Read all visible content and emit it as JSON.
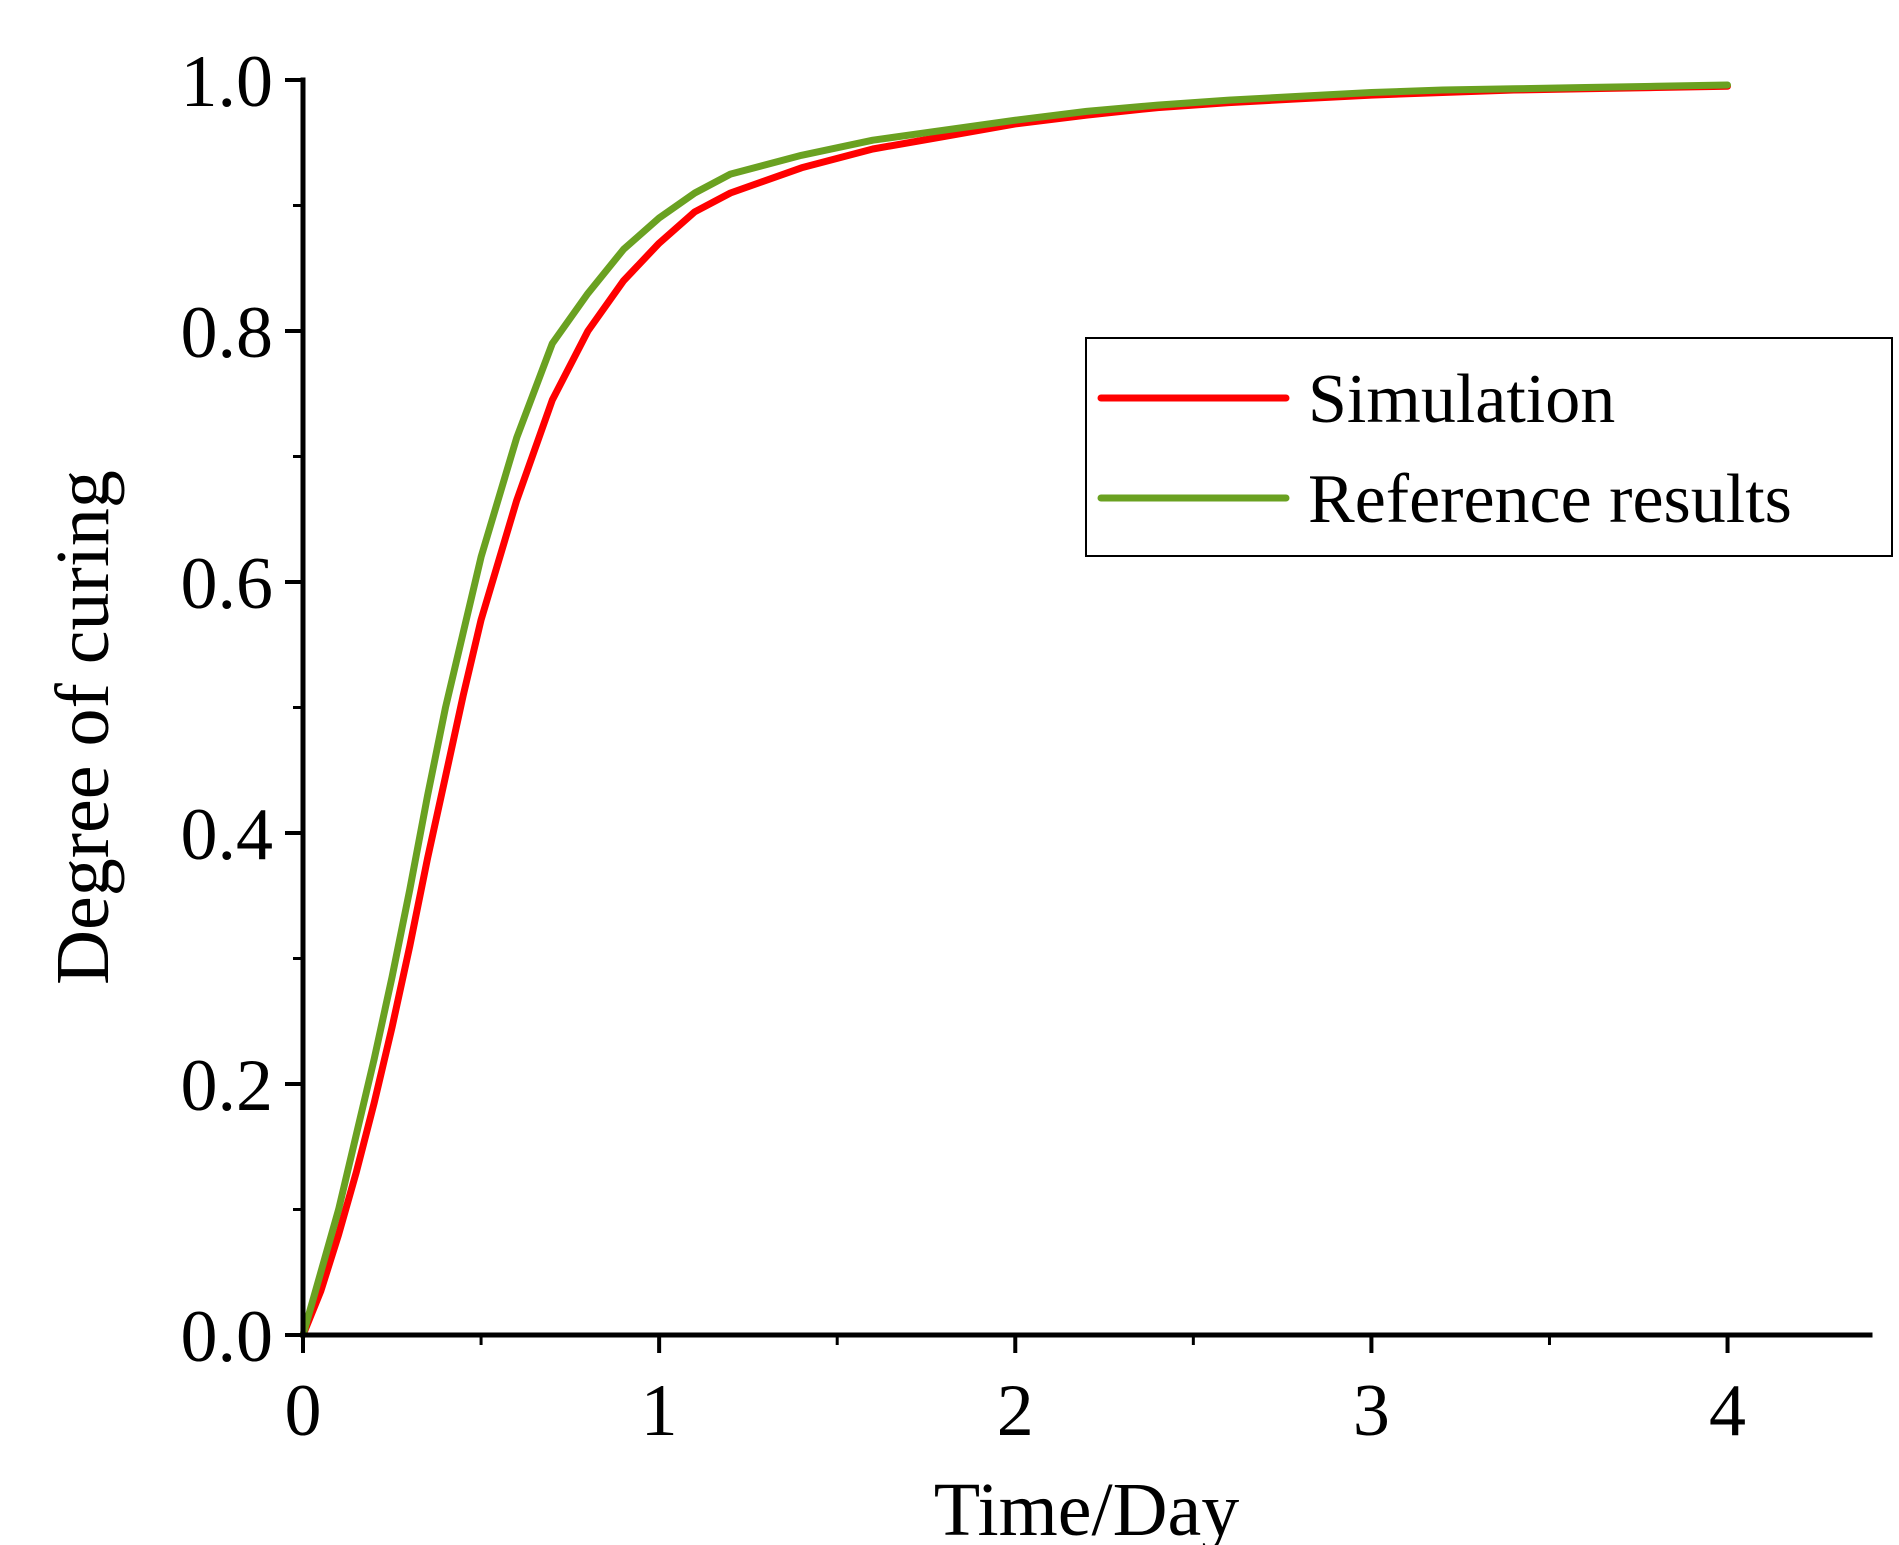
{
  "chart_data": {
    "type": "line",
    "title": "",
    "xlabel": "Time/Day",
    "ylabel": "Degree of curing",
    "xlim": [
      0,
      4.4
    ],
    "ylim": [
      0,
      1.0
    ],
    "xticks": [
      0,
      1,
      2,
      3,
      4
    ],
    "xtick_labels": [
      "0",
      "1",
      "2",
      "3",
      "4"
    ],
    "yticks": [
      0,
      0.2,
      0.4,
      0.6,
      0.8,
      1.0
    ],
    "ytick_labels": [
      "0.0",
      "0.2",
      "0.4",
      "0.6",
      "0.8",
      "1.0"
    ],
    "grid": false,
    "legend_position": "right",
    "series": [
      {
        "name": "Simulation",
        "color": "#ff0000",
        "x": [
          0,
          0.05,
          0.1,
          0.15,
          0.2,
          0.25,
          0.3,
          0.35,
          0.4,
          0.45,
          0.5,
          0.6,
          0.7,
          0.8,
          0.9,
          1.0,
          1.1,
          1.2,
          1.4,
          1.6,
          1.8,
          2.0,
          2.2,
          2.4,
          2.6,
          2.8,
          3.0,
          3.2,
          3.4,
          3.6,
          3.8,
          4.0
        ],
        "y": [
          0.0,
          0.035,
          0.08,
          0.13,
          0.185,
          0.245,
          0.31,
          0.38,
          0.445,
          0.51,
          0.57,
          0.665,
          0.745,
          0.8,
          0.84,
          0.87,
          0.895,
          0.91,
          0.93,
          0.945,
          0.955,
          0.965,
          0.972,
          0.978,
          0.982,
          0.985,
          0.988,
          0.99,
          0.992,
          0.993,
          0.994,
          0.995
        ]
      },
      {
        "name": "Reference results",
        "color": "#6aa121",
        "x": [
          0,
          0.05,
          0.1,
          0.15,
          0.2,
          0.25,
          0.3,
          0.35,
          0.4,
          0.45,
          0.5,
          0.6,
          0.7,
          0.8,
          0.9,
          1.0,
          1.1,
          1.2,
          1.4,
          1.6,
          1.8,
          2.0,
          2.2,
          2.4,
          2.6,
          2.8,
          3.0,
          3.2,
          3.4,
          3.6,
          3.8,
          4.0
        ],
        "y": [
          0.0,
          0.05,
          0.1,
          0.16,
          0.22,
          0.285,
          0.355,
          0.43,
          0.5,
          0.56,
          0.62,
          0.715,
          0.79,
          0.83,
          0.865,
          0.89,
          0.91,
          0.925,
          0.94,
          0.952,
          0.96,
          0.968,
          0.975,
          0.98,
          0.984,
          0.987,
          0.99,
          0.992,
          0.993,
          0.994,
          0.995,
          0.996
        ]
      }
    ]
  }
}
